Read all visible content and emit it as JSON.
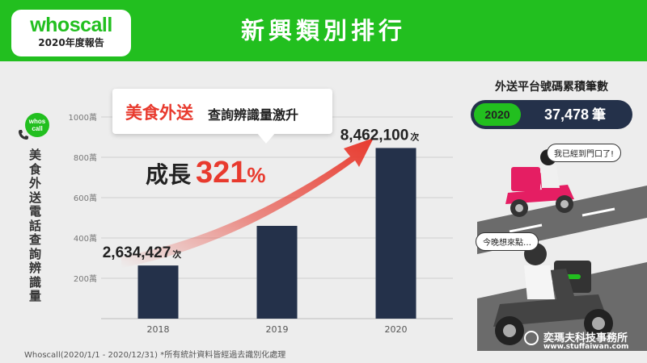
{
  "header": {
    "logo_text": "whoscall",
    "logo_subtitle": "2020年度報告",
    "title": "新興類別排行"
  },
  "side_label": {
    "badge_line1": "whos",
    "badge_line2": "call",
    "text": "美食外送電話查詢辨識量"
  },
  "callout": {
    "highlight": "美食外送",
    "text": "查詢辨識量激升"
  },
  "growth": {
    "label": "成長",
    "number": "321",
    "unit": "%"
  },
  "chart_data": {
    "type": "bar",
    "categories": [
      "2018",
      "2019",
      "2020"
    ],
    "values": [
      2634427,
      4600000,
      8462100
    ],
    "ylim": [
      0,
      10000000
    ],
    "yticks": [
      2000000,
      4000000,
      6000000,
      8000000,
      10000000
    ],
    "ytick_labels": [
      "200萬",
      "400萬",
      "600萬",
      "800萬",
      "1000萬"
    ],
    "grid": true,
    "bar_color": "#24314a",
    "annotations": [
      {
        "index": 0,
        "value_text": "2,634,427",
        "unit": "次"
      },
      {
        "index": 2,
        "value_text": "8,462,100",
        "unit": "次"
      }
    ]
  },
  "side_panel": {
    "title": "外送平台號碼累積筆數",
    "year": "2020",
    "value": "37,478",
    "unit": "筆",
    "bubble_1": "我已經到門口了!",
    "bubble_2": "今晚想來點…"
  },
  "footnote": "Whoscall(2020/1/1 - 2020/12/31) *所有統計資料皆經過去識別化處理",
  "watermark": {
    "title": "奕瑪夫科技事務所",
    "site": "www.stuffaiwan.com"
  },
  "colors": {
    "brand_green": "#22bf1f",
    "bar_navy": "#24314a",
    "accent_red": "#e83a2e",
    "background": "#ededed"
  }
}
